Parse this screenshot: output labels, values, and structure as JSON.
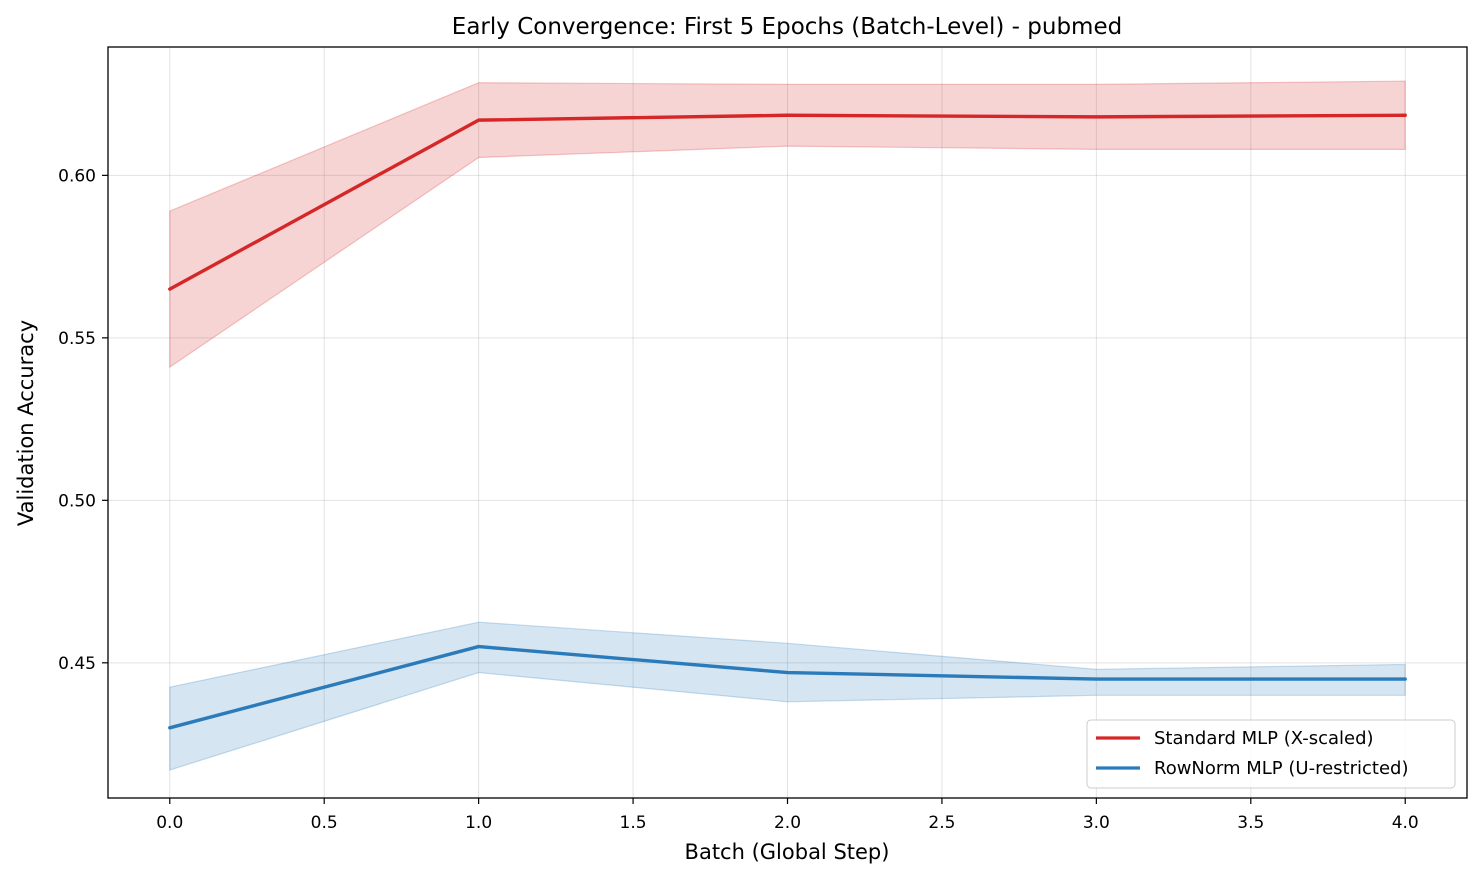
{
  "chart_data": {
    "type": "line",
    "title": "Early Convergence: First 5 Epochs (Batch-Level) - pubmed",
    "xlabel": "Batch (Global Step)",
    "ylabel": "Validation Accuracy",
    "xlim": [
      -0.2,
      4.2
    ],
    "ylim": [
      0.4084,
      0.6395
    ],
    "xticks": [
      0.0,
      0.5,
      1.0,
      1.5,
      2.0,
      2.5,
      3.0,
      3.5,
      4.0
    ],
    "xtick_labels": [
      "0.0",
      "0.5",
      "1.0",
      "1.5",
      "2.0",
      "2.5",
      "3.0",
      "3.5",
      "4.0"
    ],
    "yticks": [
      0.45,
      0.5,
      0.55,
      0.6
    ],
    "ytick_labels": [
      "0.45",
      "0.50",
      "0.55",
      "0.60"
    ],
    "grid": true,
    "legend_position": "lower-right",
    "x": [
      0,
      1,
      2,
      3,
      4
    ],
    "series": [
      {
        "name": "Standard MLP (X-scaled)",
        "color": "#d62728",
        "values": [
          0.565,
          0.617,
          0.6185,
          0.618,
          0.6185
        ],
        "band_upper": [
          0.589,
          0.6285,
          0.628,
          0.628,
          0.629
        ],
        "band_lower": [
          0.541,
          0.6055,
          0.609,
          0.608,
          0.608
        ]
      },
      {
        "name": "RowNorm MLP (U-restricted)",
        "color": "#2b7bba",
        "values": [
          0.43,
          0.455,
          0.447,
          0.445,
          0.445
        ],
        "band_upper": [
          0.4425,
          0.4625,
          0.456,
          0.448,
          0.4495
        ],
        "band_lower": [
          0.417,
          0.447,
          0.438,
          0.44,
          0.44
        ]
      }
    ]
  }
}
